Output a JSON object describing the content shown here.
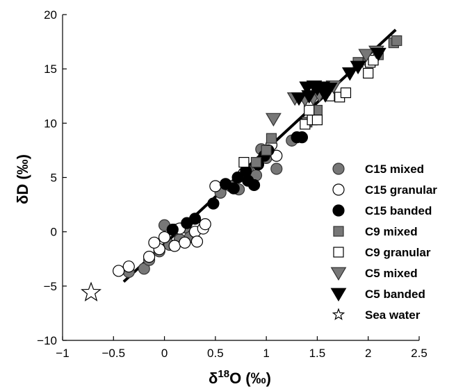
{
  "chart_data": {
    "type": "scatter",
    "title": "",
    "xlabel": {
      "base": "δ",
      "sup": "18",
      "rest": "O (‰)"
    },
    "ylabel": "δD (‰)",
    "xlim": [
      -1,
      2.5
    ],
    "ylim": [
      -10,
      20
    ],
    "xticks": [
      -1,
      -0.5,
      0,
      0.5,
      1,
      1.5,
      2,
      2.5
    ],
    "xtick_labels": [
      "−1",
      "−0.5",
      "0",
      "0.5",
      "1",
      "1.5",
      "2",
      "2.5"
    ],
    "yticks": [
      -10,
      -5,
      0,
      5,
      10,
      15,
      20
    ],
    "ytick_labels": [
      "−10",
      "−5",
      "0",
      "5",
      "10",
      "15",
      "20"
    ],
    "grid": false,
    "legend_position": "right",
    "fit_line": {
      "x": [
        -0.4,
        2.27
      ],
      "y": [
        -4.6,
        18.6
      ],
      "color": "#000000"
    },
    "series": [
      {
        "name": "C15 mixed",
        "marker": "circle",
        "fill": "#777777",
        "stroke": "#333333",
        "points": [
          [
            -0.35,
            -3.7
          ],
          [
            -0.2,
            -3.4
          ],
          [
            -0.15,
            -2.6
          ],
          [
            -0.05,
            -1.8
          ],
          [
            0.05,
            -1.2
          ],
          [
            0.15,
            -0.7
          ],
          [
            0.25,
            -0.5
          ],
          [
            0.0,
            0.6
          ],
          [
            0.1,
            0.2
          ],
          [
            0.2,
            0.4
          ],
          [
            0.55,
            3.6
          ],
          [
            0.65,
            4.2
          ],
          [
            0.73,
            3.9
          ],
          [
            0.82,
            5.6
          ],
          [
            0.9,
            5.2
          ],
          [
            1.0,
            6.8
          ],
          [
            1.1,
            5.8
          ],
          [
            1.25,
            8.4
          ],
          [
            0.95,
            7.6
          ]
        ]
      },
      {
        "name": "C15 granular",
        "marker": "circle",
        "fill": "#ffffff",
        "stroke": "#000000",
        "points": [
          [
            -0.45,
            -3.6
          ],
          [
            -0.35,
            -3.2
          ],
          [
            -0.15,
            -2.3
          ],
          [
            -0.05,
            -1.6
          ],
          [
            -0.1,
            -1.0
          ],
          [
            0.0,
            -0.5
          ],
          [
            0.1,
            -1.3
          ],
          [
            0.2,
            -1.0
          ],
          [
            0.15,
            0.3
          ],
          [
            0.3,
            0.0
          ],
          [
            0.32,
            -0.9
          ],
          [
            0.38,
            0.3
          ],
          [
            0.4,
            0.7
          ],
          [
            0.5,
            4.2
          ],
          [
            0.78,
            5.4
          ],
          [
            1.1,
            7.0
          ],
          [
            1.05,
            8.0
          ]
        ]
      },
      {
        "name": "C15 banded",
        "marker": "circle",
        "fill": "#000000",
        "stroke": "#000000",
        "points": [
          [
            0.08,
            0.2
          ],
          [
            0.22,
            0.8
          ],
          [
            0.3,
            1.2
          ],
          [
            0.48,
            2.6
          ],
          [
            0.6,
            4.4
          ],
          [
            0.68,
            4.0
          ],
          [
            0.72,
            5.0
          ],
          [
            0.8,
            5.6
          ],
          [
            0.82,
            4.7
          ],
          [
            0.88,
            4.3
          ],
          [
            0.92,
            6.2
          ],
          [
            0.98,
            7.0
          ],
          [
            1.02,
            7.5
          ],
          [
            1.3,
            8.7
          ],
          [
            1.35,
            8.7
          ]
        ]
      },
      {
        "name": "C9 mixed",
        "marker": "square",
        "fill": "#777777",
        "stroke": "#333333",
        "points": [
          [
            0.9,
            6.4
          ],
          [
            1.0,
            7.5
          ],
          [
            1.05,
            8.6
          ],
          [
            1.4,
            10.1
          ],
          [
            1.5,
            11.2
          ],
          [
            1.9,
            15.6
          ],
          [
            2.0,
            15.8
          ],
          [
            2.1,
            16.3
          ],
          [
            2.25,
            17.4
          ],
          [
            2.28,
            17.6
          ]
        ]
      },
      {
        "name": "C9 granular",
        "marker": "square",
        "fill": "#ffffff",
        "stroke": "#000000",
        "points": [
          [
            0.78,
            6.4
          ],
          [
            1.38,
            9.9
          ],
          [
            1.45,
            10.3
          ],
          [
            1.5,
            10.3
          ],
          [
            1.42,
            11.2
          ],
          [
            1.62,
            12.5
          ],
          [
            1.72,
            12.4
          ],
          [
            1.78,
            12.8
          ],
          [
            2.0,
            14.6
          ],
          [
            2.02,
            15.6
          ],
          [
            2.05,
            15.8
          ]
        ]
      },
      {
        "name": "C5 mixed",
        "marker": "triangle-down",
        "fill": "#777777",
        "stroke": "#333333",
        "points": [
          [
            1.07,
            10.4
          ],
          [
            1.28,
            12.3
          ],
          [
            1.38,
            12.2
          ],
          [
            1.46,
            12.3
          ],
          [
            1.52,
            12.6
          ],
          [
            1.58,
            12.9
          ],
          [
            1.66,
            13.4
          ],
          [
            1.98,
            16.3
          ],
          [
            2.08,
            16.6
          ]
        ]
      },
      {
        "name": "C5 banded",
        "marker": "triangle-down",
        "fill": "#000000",
        "stroke": "#000000",
        "points": [
          [
            1.32,
            12.3
          ],
          [
            1.42,
            12.5
          ],
          [
            1.4,
            13.3
          ],
          [
            1.47,
            13.4
          ],
          [
            1.5,
            13.2
          ],
          [
            1.55,
            13.3
          ],
          [
            1.58,
            12.6
          ],
          [
            1.62,
            13.2
          ],
          [
            1.82,
            14.6
          ],
          [
            1.9,
            15.2
          ],
          [
            2.1,
            16.4
          ]
        ]
      },
      {
        "name": "Sea water",
        "marker": "star",
        "fill": "#ffffff",
        "stroke": "#000000",
        "points": [
          [
            -0.72,
            -5.6
          ]
        ]
      }
    ]
  }
}
